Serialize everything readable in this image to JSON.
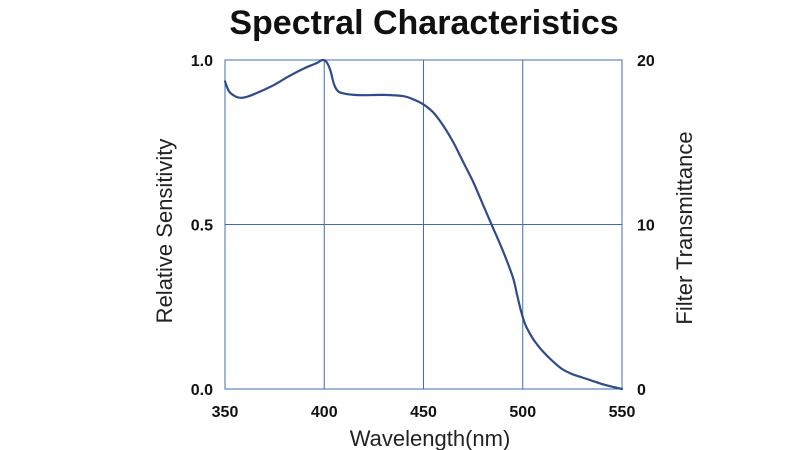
{
  "chart_data": {
    "type": "line",
    "title": "Spectral Characteristics",
    "xlabel": "Wavelength(nm)",
    "ylabel": "Relative Sensitivity",
    "y2label": "Filter Transmittance",
    "xlim": [
      350,
      550
    ],
    "ylim": [
      0,
      1.0
    ],
    "y2lim": [
      0,
      20
    ],
    "x_ticks": [
      "350",
      "400",
      "450",
      "500",
      "550"
    ],
    "y_ticks": [
      "0.0",
      "0.5",
      "1.0"
    ],
    "y2_ticks": [
      "0",
      "10",
      "20"
    ],
    "grid": true,
    "line_color": "#2e4b8c",
    "grid_color": "#3f6cb3",
    "series": [
      {
        "x": [
          350,
          352,
          355,
          358,
          362,
          368,
          375,
          382,
          390,
          396,
          399,
          401,
          403,
          405,
          407,
          410,
          415,
          420,
          430,
          440,
          445,
          450,
          455,
          460,
          465,
          470,
          475,
          480,
          485,
          490,
          495,
          497,
          499,
          501,
          503,
          506,
          510,
          515,
          520,
          525,
          530,
          535,
          540,
          545,
          550
        ],
        "y": [
          0.935,
          0.905,
          0.89,
          0.885,
          0.89,
          0.905,
          0.925,
          0.95,
          0.975,
          0.99,
          1.0,
          0.995,
          0.97,
          0.925,
          0.905,
          0.898,
          0.894,
          0.893,
          0.894,
          0.89,
          0.88,
          0.865,
          0.84,
          0.8,
          0.75,
          0.69,
          0.63,
          0.56,
          0.49,
          0.42,
          0.34,
          0.29,
          0.24,
          0.2,
          0.175,
          0.145,
          0.115,
          0.085,
          0.06,
          0.045,
          0.035,
          0.025,
          0.015,
          0.007,
          0.0
        ]
      }
    ]
  }
}
